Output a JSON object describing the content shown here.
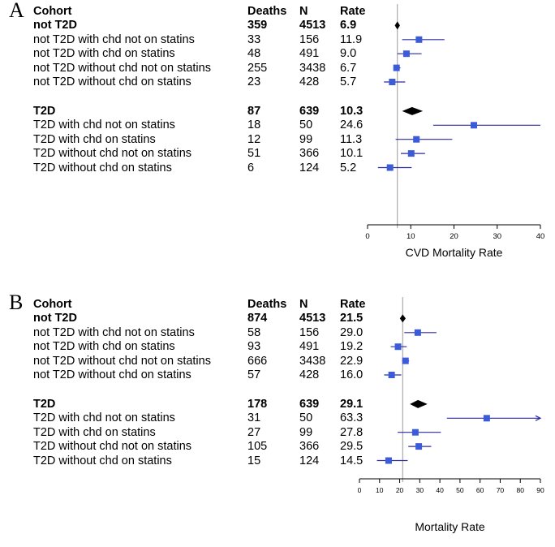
{
  "chart_data": [
    {
      "type": "forest",
      "panel_label": "A",
      "headers": {
        "cohort": "Cohort",
        "deaths": "Deaths",
        "n": "N",
        "rate": "Rate"
      },
      "xlabel": "CVD Mortality Rate",
      "xlim": [
        0,
        40
      ],
      "xticks": [
        0,
        10,
        20,
        30,
        40
      ],
      "reference_line": 6.9,
      "groups": [
        {
          "summary": {
            "label": "not T2D",
            "deaths": "359",
            "n": "4513",
            "rate": "6.9",
            "value": 6.9,
            "lo": 6.3,
            "hi": 7.5
          },
          "rows": [
            {
              "label": "not T2D with chd not on statins",
              "deaths": "33",
              "n": "156",
              "rate": "11.9",
              "value": 11.9,
              "lo": 8.0,
              "hi": 17.8
            },
            {
              "label": "not T2D with chd on statins",
              "deaths": "48",
              "n": "491",
              "rate": "9.0",
              "value": 9.0,
              "lo": 6.9,
              "hi": 12.5
            },
            {
              "label": "not T2D without chd not on statins",
              "deaths": "255",
              "n": "3438",
              "rate": "6.7",
              "value": 6.7,
              "lo": 6.0,
              "hi": 7.6
            },
            {
              "label": "not T2D without chd on statins",
              "deaths": "23",
              "n": "428",
              "rate": "5.7",
              "value": 5.7,
              "lo": 3.8,
              "hi": 8.7
            }
          ]
        },
        {
          "summary": {
            "label": "T2D",
            "deaths": "87",
            "n": "639",
            "rate": "10.3",
            "value": 10.3,
            "lo": 8.0,
            "hi": 12.8
          },
          "rows": [
            {
              "label": "T2D with chd not on statins",
              "deaths": "18",
              "n": "50",
              "rate": "24.6",
              "value": 24.6,
              "lo": 15.2,
              "hi": 40.0
            },
            {
              "label": "T2D with chd on statins",
              "deaths": "12",
              "n": "99",
              "rate": "11.3",
              "value": 11.3,
              "lo": 6.5,
              "hi": 19.6
            },
            {
              "label": "T2D without chd not on statins",
              "deaths": "51",
              "n": "366",
              "rate": "10.1",
              "value": 10.1,
              "lo": 7.7,
              "hi": 13.3
            },
            {
              "label": "T2D without chd on statins",
              "deaths": "6",
              "n": "124",
              "rate": "5.2",
              "value": 5.2,
              "lo": 2.4,
              "hi": 10.2
            }
          ]
        }
      ]
    },
    {
      "type": "forest",
      "panel_label": "B",
      "headers": {
        "cohort": "Cohort",
        "deaths": "Deaths",
        "n": "N",
        "rate": "Rate"
      },
      "xlabel": "Mortality Rate",
      "xlim": [
        0,
        90
      ],
      "xticks": [
        0,
        10,
        20,
        30,
        40,
        50,
        60,
        70,
        80,
        90
      ],
      "reference_line": 21.5,
      "groups": [
        {
          "summary": {
            "label": "not T2D",
            "deaths": "874",
            "n": "4513",
            "rate": "21.5",
            "value": 21.5,
            "lo": 20.1,
            "hi": 23.0
          },
          "rows": [
            {
              "label": "not T2D with chd not on statins",
              "deaths": "58",
              "n": "156",
              "rate": "29.0",
              "value": 29.0,
              "lo": 22.3,
              "hi": 38.3
            },
            {
              "label": "not T2D with chd on statins",
              "deaths": "93",
              "n": "491",
              "rate": "19.2",
              "value": 19.2,
              "lo": 15.6,
              "hi": 23.5
            },
            {
              "label": "not T2D without chd not on statins",
              "deaths": "666",
              "n": "3438",
              "rate": "22.9",
              "value": 22.9,
              "lo": 21.2,
              "hi": 24.7
            },
            {
              "label": "not T2D without chd on statins",
              "deaths": "57",
              "n": "428",
              "rate": "16.0",
              "value": 16.0,
              "lo": 12.3,
              "hi": 20.8
            }
          ]
        },
        {
          "summary": {
            "label": "T2D",
            "deaths": "178",
            "n": "639",
            "rate": "29.1",
            "value": 29.1,
            "lo": 25.1,
            "hi": 33.8
          },
          "rows": [
            {
              "label": "T2D with chd not on statins",
              "deaths": "31",
              "n": "50",
              "rate": "63.3",
              "value": 63.3,
              "lo": 43.5,
              "hi": 90.0,
              "arrow": true
            },
            {
              "label": "T2D with chd on statins",
              "deaths": "27",
              "n": "99",
              "rate": "27.8",
              "value": 27.8,
              "lo": 19.0,
              "hi": 40.5
            },
            {
              "label": "T2D without chd not on statins",
              "deaths": "105",
              "n": "366",
              "rate": "29.5",
              "value": 29.5,
              "lo": 24.3,
              "hi": 35.7
            },
            {
              "label": "T2D without chd on statins",
              "deaths": "15",
              "n": "124",
              "rate": "14.5",
              "value": 14.5,
              "lo": 8.7,
              "hi": 24.0
            }
          ]
        }
      ]
    }
  ],
  "colors": {
    "marker": "#3b5bd9",
    "ci_line": "#2a2aa0",
    "summary_diamond": "#000000",
    "reference_line": "#999999",
    "text": "#000000"
  }
}
